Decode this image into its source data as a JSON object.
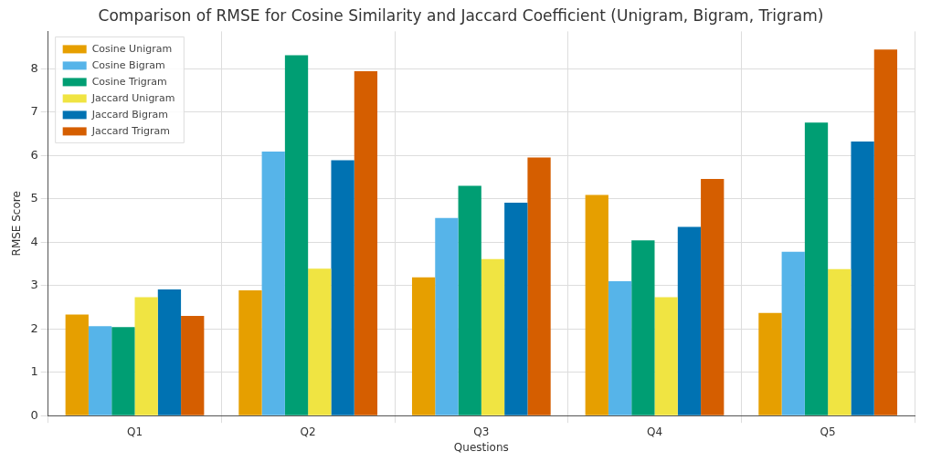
{
  "chart_data": {
    "type": "bar",
    "title": "Comparison of RMSE for Cosine Similarity and Jaccard Coefficient (Unigram, Bigram, Trigram)",
    "xlabel": "Questions",
    "ylabel": "RMSE Score",
    "categories": [
      "Q1",
      "Q2",
      "Q3",
      "Q4",
      "Q5"
    ],
    "series": [
      {
        "name": "Cosine Unigram",
        "color": "#e69f00",
        "values": [
          2.33,
          2.89,
          3.19,
          5.09,
          2.37
        ]
      },
      {
        "name": "Cosine Bigram",
        "color": "#56b4e9",
        "values": [
          2.06,
          6.09,
          4.56,
          3.1,
          3.78
        ]
      },
      {
        "name": "Cosine Trigram",
        "color": "#009e73",
        "values": [
          2.04,
          8.31,
          5.3,
          4.04,
          6.76
        ]
      },
      {
        "name": "Jaccard Unigram",
        "color": "#f0e442",
        "values": [
          2.73,
          3.39,
          3.61,
          2.73,
          3.38
        ]
      },
      {
        "name": "Jaccard Bigram",
        "color": "#0072b2",
        "values": [
          2.91,
          5.89,
          4.91,
          4.35,
          6.32
        ]
      },
      {
        "name": "Jaccard Trigram",
        "color": "#d55e00",
        "values": [
          2.3,
          7.94,
          5.95,
          5.46,
          8.44
        ]
      }
    ],
    "ylim": [
      0,
      8.86
    ],
    "yticks": [
      0,
      1,
      2,
      3,
      4,
      5,
      6,
      7,
      8
    ],
    "grid": true,
    "legend": "top left"
  }
}
